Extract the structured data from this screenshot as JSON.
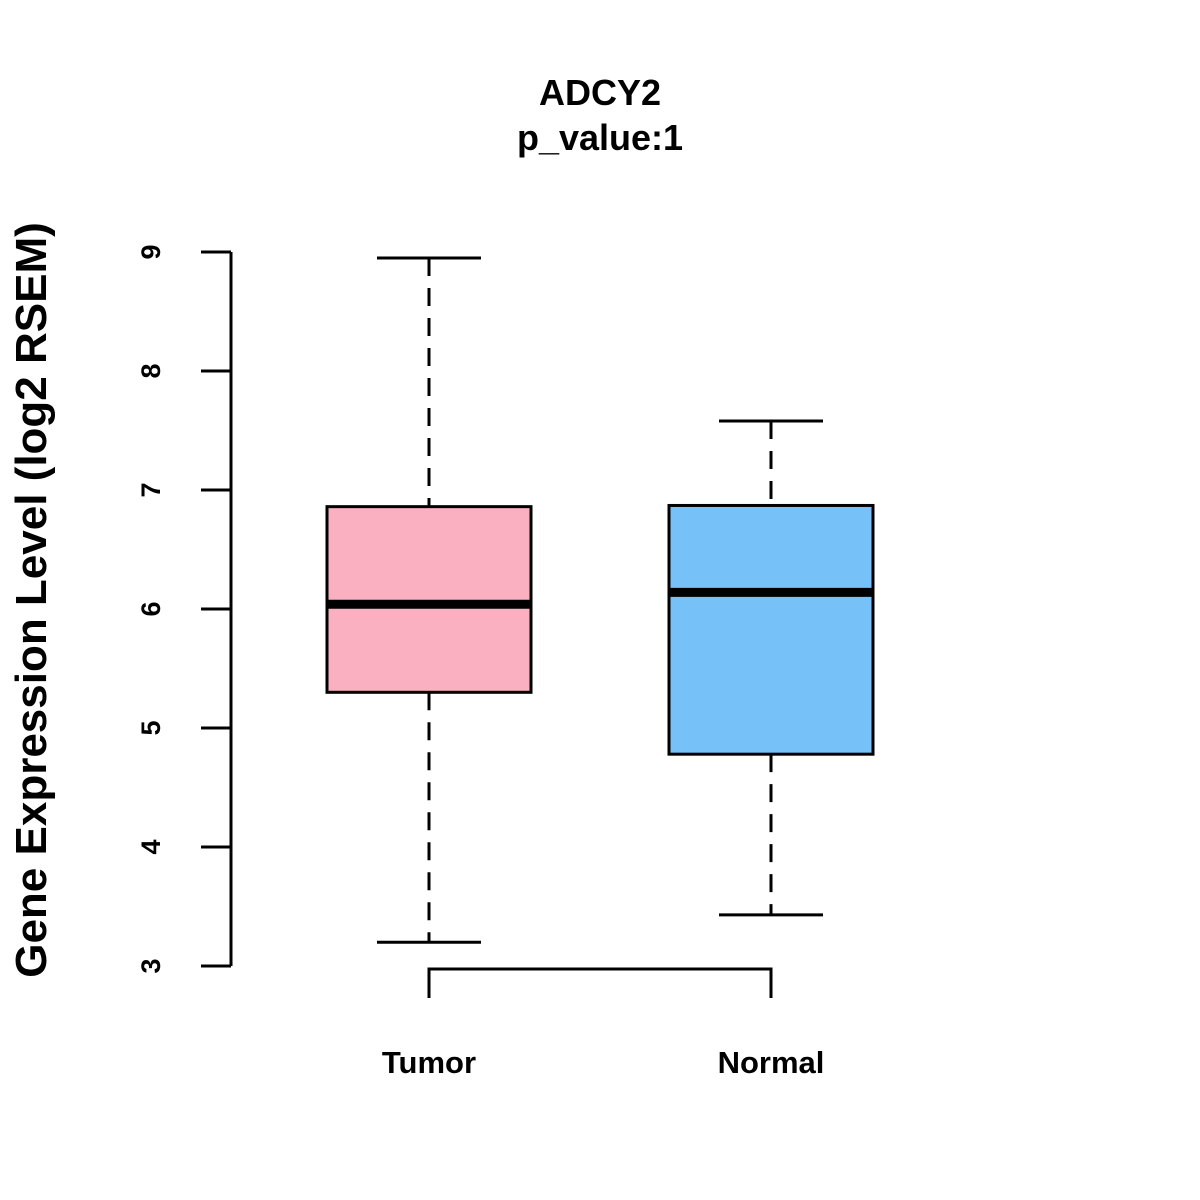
{
  "chart_data": {
    "type": "box",
    "title": "ADCY2",
    "subtitle": "p_value:1",
    "ylabel": "Gene Expression Level (log2 RSEM)",
    "xlabel": "",
    "ylim": [
      3,
      9
    ],
    "yticks": [
      "3",
      "4",
      "5",
      "6",
      "7",
      "8",
      "9"
    ],
    "categories": [
      "Tumor",
      "Normal"
    ],
    "boxes": [
      {
        "name": "Tumor",
        "min": 3.2,
        "q1": 5.3,
        "median": 6.04,
        "q3": 6.86,
        "max": 8.95,
        "color": "#FBB0C2"
      },
      {
        "name": "Normal",
        "min": 3.43,
        "q1": 4.78,
        "median": 6.14,
        "q3": 6.87,
        "max": 7.58,
        "color": "#76C1F7"
      }
    ],
    "comparison_bracket": {
      "from": "Tumor",
      "to": "Normal"
    }
  }
}
